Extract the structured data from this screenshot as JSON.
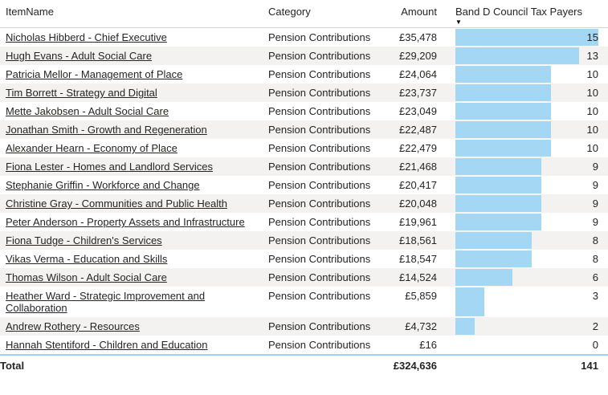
{
  "colors": {
    "bar_color": "#a4d7f4",
    "row_alt": "#f3f2f1",
    "total_border": "#9ed2f2",
    "header_divider": "#d4d4d4"
  },
  "icons": {
    "sort_descending": "▼"
  },
  "table": {
    "columns": {
      "item": "ItemName",
      "category": "Category",
      "amount": "Amount",
      "band": "Band D Council Tax Payers"
    },
    "sort": {
      "column": "Band D Council Tax Payers",
      "direction": "descending"
    },
    "max_value": 15,
    "rows": [
      {
        "item": "Nicholas Hibberd - Chief Executive",
        "category": "Pension Contributions",
        "amount": "£35,478",
        "value": 15
      },
      {
        "item": "Hugh Evans - Adult Social Care",
        "category": "Pension Contributions",
        "amount": "£29,209",
        "value": 13
      },
      {
        "item": "Patricia Mellor - Management of Place",
        "category": "Pension Contributions",
        "amount": "£24,064",
        "value": 10
      },
      {
        "item": "Tim Borrett - Strategy and Digital",
        "category": "Pension Contributions",
        "amount": "£23,737",
        "value": 10
      },
      {
        "item": "Mette Jakobsen - Adult Social Care",
        "category": "Pension Contributions",
        "amount": "£23,049",
        "value": 10
      },
      {
        "item": "Jonathan Smith - Growth and Regeneration",
        "category": "Pension Contributions",
        "amount": "£22,487",
        "value": 10
      },
      {
        "item": "Alexander Hearn - Economy of Place",
        "category": "Pension Contributions",
        "amount": "£22,479",
        "value": 10
      },
      {
        "item": "Fiona Lester - Homes and Landlord Services",
        "category": "Pension Contributions",
        "amount": "£21,468",
        "value": 9
      },
      {
        "item": "Stephanie Griffin - Workforce and Change",
        "category": "Pension Contributions",
        "amount": "£20,417",
        "value": 9
      },
      {
        "item": "Christine Gray - Communities and Public Health",
        "category": "Pension Contributions",
        "amount": "£20,048",
        "value": 9
      },
      {
        "item": "Peter Anderson - Property Assets and Infrastructure",
        "category": "Pension Contributions",
        "amount": "£19,961",
        "value": 9
      },
      {
        "item": "Fiona Tudge - Children's Services",
        "category": "Pension Contributions",
        "amount": "£18,561",
        "value": 8
      },
      {
        "item": "Vikas Verma - Education and Skills",
        "category": "Pension Contributions",
        "amount": "£18,547",
        "value": 8
      },
      {
        "item": "Thomas Wilson - Adult Social Care",
        "category": "Pension Contributions",
        "amount": "£14,524",
        "value": 6
      },
      {
        "item": "Heather Ward - Strategic Improvement and Collaboration",
        "category": "Pension Contributions",
        "amount": "£5,859",
        "value": 3
      },
      {
        "item": "Andrew Rothery - Resources",
        "category": "Pension Contributions",
        "amount": "£4,732",
        "value": 2
      },
      {
        "item": "Hannah Stentiford - Children and Education",
        "category": "Pension Contributions",
        "amount": "£16",
        "value": 0
      }
    ],
    "total": {
      "label": "Total",
      "amount": "£324,636",
      "value": "141"
    }
  }
}
